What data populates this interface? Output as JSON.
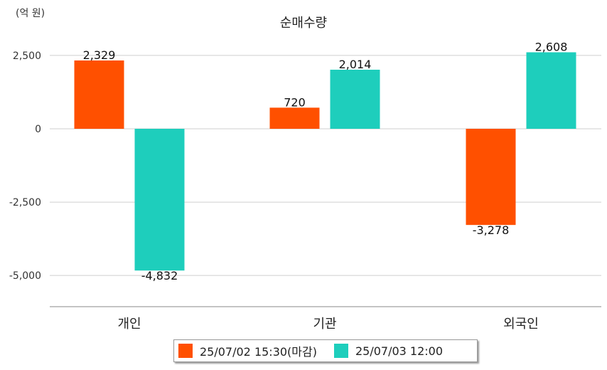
{
  "chart_data": {
    "type": "bar",
    "title": "순매수량",
    "unit_label": "(억 원)",
    "categories": [
      "개인",
      "기관",
      "외국인"
    ],
    "series": [
      {
        "name": "25/07/02 15:30(마감)",
        "color": "#ff5000",
        "values": [
          2329,
          720,
          -3278
        ]
      },
      {
        "name": "25/07/03 12:00",
        "color": "#1ecebc",
        "values": [
          -4832,
          2014,
          2608
        ]
      }
    ],
    "value_labels": [
      [
        "2,329",
        "720",
        "-3,278"
      ],
      [
        "-4,832",
        "2,014",
        "2,608"
      ]
    ],
    "yticks": [
      2500,
      0,
      -2500,
      -5000
    ],
    "ytick_labels": [
      "2,500",
      "0",
      "-2,500",
      "-5,000"
    ],
    "ylim": [
      -6000,
      2600
    ],
    "grid": true,
    "legend_position": "bottom"
  }
}
